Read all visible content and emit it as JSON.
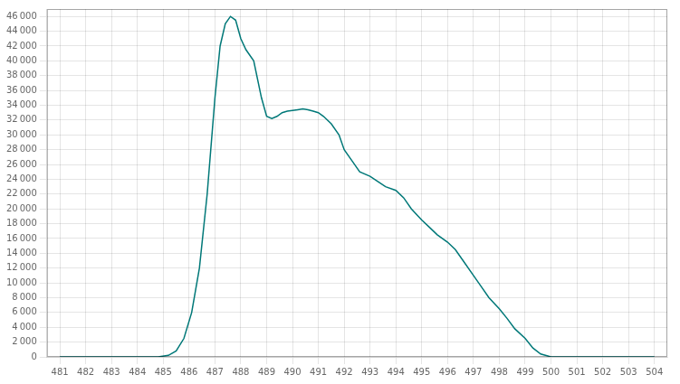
{
  "chart_data": {
    "type": "line",
    "x": [
      481,
      482,
      483,
      484,
      484.8,
      485.2,
      485.5,
      485.8,
      486.1,
      486.4,
      486.7,
      487.0,
      487.2,
      487.4,
      487.6,
      487.8,
      488.0,
      488.2,
      488.5,
      488.8,
      489.0,
      489.2,
      489.4,
      489.6,
      489.8,
      490.0,
      490.2,
      490.4,
      490.6,
      490.8,
      491.0,
      491.2,
      491.5,
      491.8,
      492.0,
      492.3,
      492.6,
      493.0,
      493.3,
      493.6,
      494.0,
      494.3,
      494.6,
      495.0,
      495.3,
      495.6,
      496.0,
      496.3,
      496.6,
      497.0,
      497.3,
      497.6,
      498.0,
      498.3,
      498.6,
      499.0,
      499.3,
      499.6,
      500.0,
      501,
      502,
      503,
      504
    ],
    "values": [
      0,
      0,
      0,
      0,
      0,
      200,
      800,
      2500,
      6000,
      12000,
      22000,
      35000,
      42000,
      45000,
      46000,
      45500,
      43000,
      41500,
      40000,
      35000,
      32500,
      32200,
      32500,
      33000,
      33200,
      33300,
      33400,
      33500,
      33400,
      33200,
      33000,
      32500,
      31500,
      30000,
      28000,
      26500,
      25000,
      24400,
      23700,
      23000,
      22500,
      21500,
      20000,
      18500,
      17500,
      16500,
      15500,
      14500,
      13000,
      11000,
      9500,
      8000,
      6500,
      5200,
      3800,
      2500,
      1200,
      400,
      0,
      0,
      0,
      0,
      0
    ],
    "color": "#007878",
    "xlim": [
      480.5,
      504.5
    ],
    "xticks": [
      481,
      482,
      483,
      484,
      485,
      486,
      487,
      488,
      489,
      490,
      491,
      492,
      493,
      494,
      495,
      496,
      497,
      498,
      499,
      500,
      501,
      502,
      503,
      504
    ],
    "ylim": [
      0,
      47000
    ],
    "yticks": [
      0,
      {
        "value": 2000,
        "label": "2 000"
      },
      {
        "value": 4000,
        "label": "4 000"
      },
      {
        "value": 6000,
        "label": "6 000"
      },
      {
        "value": 8000,
        "label": "8 000"
      },
      {
        "value": 10000,
        "label": "10 000"
      },
      {
        "value": 12000,
        "label": "12 000"
      },
      {
        "value": 14000,
        "label": "14 000"
      },
      {
        "value": 16000,
        "label": "16 000"
      },
      {
        "value": 18000,
        "label": "18 000"
      },
      {
        "value": 20000,
        "label": "20 000"
      },
      {
        "value": 22000,
        "label": "22 000"
      },
      {
        "value": 24000,
        "label": "24 000"
      },
      {
        "value": 26000,
        "label": "26 000"
      },
      {
        "value": 28000,
        "label": "28 000"
      },
      {
        "value": 30000,
        "label": "30 000"
      },
      {
        "value": 32000,
        "label": "32 000"
      },
      {
        "value": 34000,
        "label": "34 000"
      },
      {
        "value": 36000,
        "label": "36 000"
      },
      {
        "value": 38000,
        "label": "38 000"
      },
      {
        "value": 40000,
        "label": "40 000"
      },
      {
        "value": 42000,
        "label": "42 000"
      },
      {
        "value": 44000,
        "label": "44 000"
      },
      {
        "value": 46000,
        "label": "46 000"
      }
    ],
    "grid": true
  }
}
